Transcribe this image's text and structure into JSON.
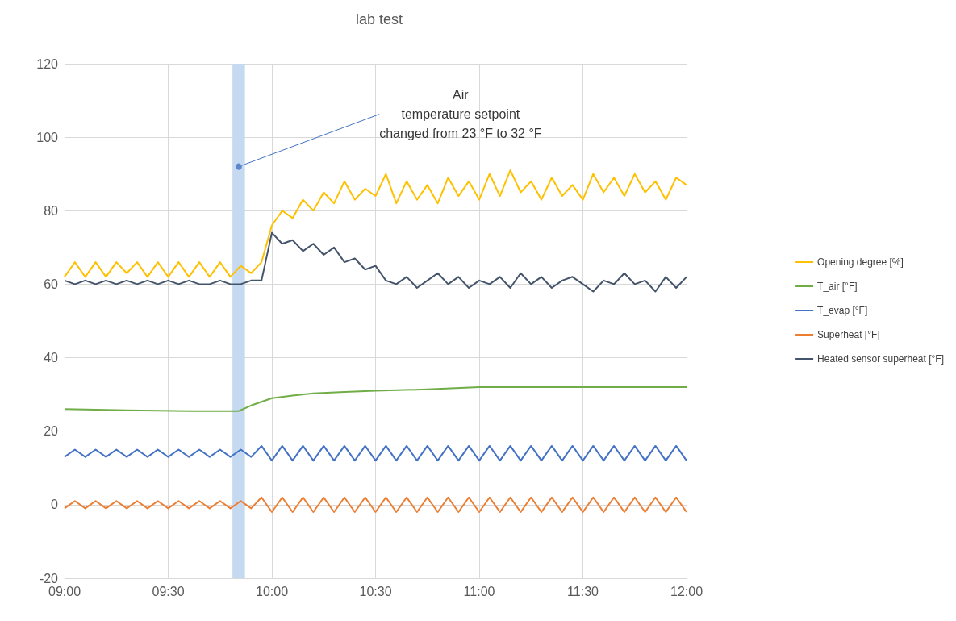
{
  "chart_data": {
    "type": "line",
    "title": "lab test",
    "x": [
      9,
      9.05,
      9.1,
      9.15,
      9.2,
      9.25,
      9.3,
      9.35,
      9.4,
      9.45,
      9.5,
      9.55,
      9.6,
      9.65,
      9.7,
      9.75,
      9.8,
      9.85,
      9.9,
      9.95,
      10,
      10.05,
      10.1,
      10.15,
      10.2,
      10.25,
      10.3,
      10.35,
      10.4,
      10.45,
      10.5,
      10.55,
      10.6,
      10.65,
      10.7,
      10.75,
      10.8,
      10.85,
      10.9,
      10.95,
      11,
      11.05,
      11.1,
      11.15,
      11.2,
      11.25,
      11.3,
      11.35,
      11.4,
      11.45,
      11.5,
      11.55,
      11.6,
      11.65,
      11.7,
      11.75,
      11.8,
      11.85,
      11.9,
      11.95,
      12
    ],
    "series": [
      {
        "name": "Opening degree [%]",
        "color": "#ffc000",
        "values": [
          62,
          66,
          62,
          66,
          62,
          66,
          63,
          66,
          62,
          66,
          62,
          66,
          62,
          66,
          62,
          66,
          62,
          65,
          63,
          66,
          76,
          80,
          78,
          83,
          80,
          85,
          82,
          88,
          83,
          86,
          84,
          90,
          82,
          88,
          83,
          87,
          82,
          89,
          84,
          88,
          83,
          90,
          84,
          91,
          85,
          88,
          83,
          89,
          84,
          87,
          83,
          90,
          85,
          89,
          84,
          90,
          85,
          88,
          83,
          89,
          87
        ]
      },
      {
        "name": "T_air [°F]",
        "color": "#70ad47",
        "x": [
          9,
          9.3,
          9.6,
          9.84,
          9.9,
          9.95,
          10,
          10.1,
          10.2,
          10.35,
          10.5,
          10.75,
          11,
          11.5,
          12
        ],
        "values": [
          26,
          25.7,
          25.5,
          25.5,
          27,
          28,
          29,
          29.7,
          30.3,
          30.7,
          31,
          31.4,
          32,
          32,
          32
        ]
      },
      {
        "name": "T_evap [°F]",
        "color": "#4472c4",
        "values": [
          13,
          15,
          13,
          15,
          13,
          15,
          13,
          15,
          13,
          15,
          13,
          15,
          13,
          15,
          13,
          15,
          13,
          15,
          13,
          16,
          12,
          16,
          12,
          16,
          12,
          16,
          12,
          16,
          12,
          16,
          12,
          16,
          12,
          16,
          12,
          16,
          12,
          16,
          12,
          16,
          12,
          16,
          12,
          16,
          12,
          16,
          12,
          16,
          12,
          16,
          12,
          16,
          12,
          16,
          12,
          16,
          12,
          16,
          12,
          16,
          12
        ]
      },
      {
        "name": "Superheat [°F]",
        "color": "#ed7d31",
        "values": [
          -1,
          1,
          -1,
          1,
          -1,
          1,
          -1,
          1,
          -1,
          1,
          -1,
          1,
          -1,
          1,
          -1,
          1,
          -1,
          1,
          -1,
          2,
          -2,
          2,
          -2,
          2,
          -2,
          2,
          -2,
          2,
          -2,
          2,
          -2,
          2,
          -2,
          2,
          -2,
          2,
          -2,
          2,
          -2,
          2,
          -2,
          2,
          -2,
          2,
          -2,
          2,
          -2,
          2,
          -2,
          2,
          -2,
          2,
          -2,
          2,
          -2,
          2,
          -2,
          2,
          -2,
          2,
          -2
        ]
      },
      {
        "name": "Heated sensor superheat [°F]",
        "color": "#44546a",
        "values": [
          61,
          60,
          61,
          60,
          61,
          60,
          61,
          60,
          61,
          60,
          61,
          60,
          61,
          60,
          60,
          61,
          60,
          60,
          61,
          61,
          74,
          71,
          72,
          69,
          71,
          68,
          70,
          66,
          67,
          64,
          65,
          61,
          60,
          62,
          59,
          61,
          63,
          60,
          62,
          59,
          61,
          60,
          62,
          59,
          63,
          60,
          62,
          59,
          61,
          62,
          60,
          58,
          61,
          60,
          63,
          60,
          61,
          58,
          62,
          59,
          62
        ]
      }
    ],
    "xlim": [
      9,
      12
    ],
    "xticks": [
      {
        "value": 9,
        "label": "09:00"
      },
      {
        "value": 9.5,
        "label": "09:30"
      },
      {
        "value": 10,
        "label": "10:00"
      },
      {
        "value": 10.5,
        "label": "10:30"
      },
      {
        "value": 11,
        "label": "11:00"
      },
      {
        "value": 11.5,
        "label": "11:30"
      },
      {
        "value": 12,
        "label": "12:00"
      }
    ],
    "ylim": [
      -20,
      120
    ],
    "yticks": [
      -20,
      0,
      20,
      40,
      60,
      80,
      100,
      120
    ],
    "bands": [
      {
        "axis": "x",
        "from": 9.81,
        "to": 9.87,
        "color": "#c5d9f1"
      }
    ],
    "annotations": [
      {
        "text": "Air\ntemperature setpoint\nchanged from 23 °F to 32 °F",
        "x": 9.84,
        "y": 92
      }
    ],
    "grid": true,
    "legend": "right",
    "marker": "none",
    "line_style": "solid"
  }
}
